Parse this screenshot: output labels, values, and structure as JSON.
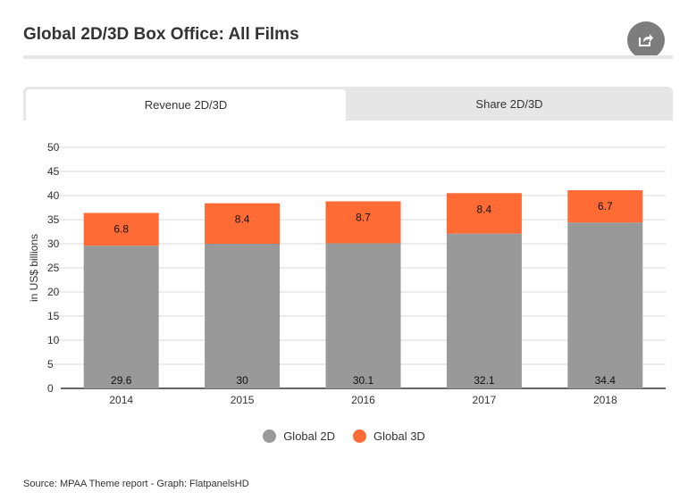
{
  "header": {
    "title": "Global 2D/3D Box Office: All Films",
    "share_icon": "share-icon"
  },
  "tabs": [
    {
      "label": "Revenue 2D/3D",
      "active": true
    },
    {
      "label": "Share 2D/3D",
      "active": false
    }
  ],
  "chart_data": {
    "type": "bar",
    "stacked": true,
    "categories": [
      "2014",
      "2015",
      "2016",
      "2017",
      "2018"
    ],
    "series": [
      {
        "name": "Global 2D",
        "values": [
          29.6,
          30,
          30.1,
          32.1,
          34.4
        ],
        "color": "#999999"
      },
      {
        "name": "Global 3D",
        "values": [
          6.8,
          8.4,
          8.7,
          8.4,
          6.7
        ],
        "color": "#ff6b35"
      }
    ],
    "ylabel": "in US$ billions",
    "ylim": [
      0,
      50
    ],
    "yticks": [
      0,
      5,
      10,
      15,
      20,
      25,
      30,
      35,
      40,
      45,
      50
    ],
    "grid": true,
    "legend": "bottom"
  },
  "footer": {
    "source": "Source: MPAA Theme report - Graph: FlatpanelsHD"
  }
}
